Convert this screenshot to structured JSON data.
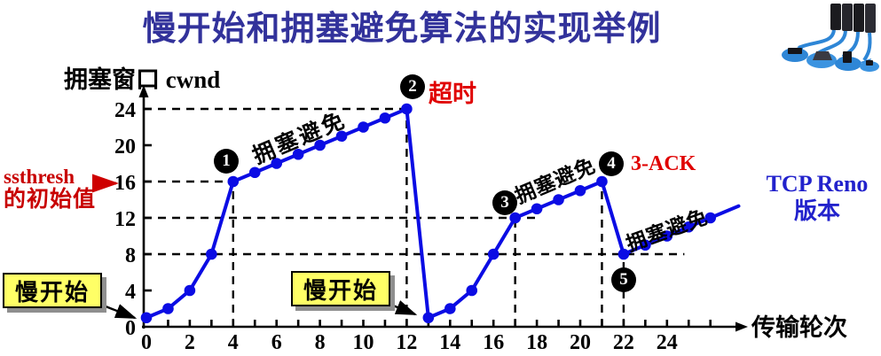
{
  "title": "慢开始和拥塞避免算法的实现举例",
  "chart_data": {
    "type": "line",
    "xlabel": "传输轮次",
    "ylabel": "拥塞窗口  cwnd",
    "x_ticks": [
      0,
      2,
      4,
      6,
      8,
      10,
      12,
      14,
      16,
      18,
      20,
      22,
      24
    ],
    "y_ticks": [
      0,
      4,
      8,
      12,
      16,
      20,
      24
    ],
    "xlim": [
      0,
      27.5
    ],
    "ylim": [
      0,
      26
    ],
    "line_color": "#0B0CE4",
    "series": [
      {
        "name": "cwnd",
        "points": [
          [
            0,
            1
          ],
          [
            1,
            2
          ],
          [
            2,
            4
          ],
          [
            3,
            8
          ],
          [
            4,
            16
          ],
          [
            5,
            17
          ],
          [
            6,
            18
          ],
          [
            7,
            19
          ],
          [
            8,
            20
          ],
          [
            9,
            21
          ],
          [
            10,
            22
          ],
          [
            11,
            23
          ],
          [
            12,
            24
          ],
          [
            13,
            1
          ],
          [
            14,
            2
          ],
          [
            15,
            4
          ],
          [
            16,
            8
          ],
          [
            17,
            12
          ],
          [
            18,
            13
          ],
          [
            19,
            14
          ],
          [
            20,
            15
          ],
          [
            21,
            16
          ],
          [
            22,
            8
          ],
          [
            23,
            9
          ],
          [
            24,
            10
          ],
          [
            25,
            11
          ],
          [
            26,
            12
          ]
        ],
        "tail_end": [
          27.3,
          13.3
        ]
      }
    ],
    "dashed_h": [
      {
        "y": 24,
        "x_to": 12
      },
      {
        "y": 16,
        "x_to": 4
      },
      {
        "y": 12,
        "x_to": 18.2
      },
      {
        "y": 8,
        "x_to": 24.8
      }
    ],
    "dashed_v": [
      {
        "x": 4,
        "y_to": 16
      },
      {
        "x": 12,
        "y_to": 24
      },
      {
        "x": 17,
        "y_to": 12
      },
      {
        "x": 21,
        "y_to": 16
      },
      {
        "x": 22,
        "y_to": 8
      }
    ]
  },
  "annotations": {
    "badge1": "1",
    "badge2": "2",
    "badge3": "3",
    "badge4": "4",
    "badge5": "5",
    "timeout": "超时",
    "three_ack": "3-ACK",
    "ca1": "拥塞避免",
    "ca2": "拥塞避免",
    "ca3": "拥塞避免",
    "ssthresh_line1": "ssthresh",
    "ssthresh_line2": "的初始值",
    "slow_start1": "慢开始",
    "slow_start2": "慢开始",
    "tcp_reno_line1": "TCP Reno",
    "tcp_reno_line2": "版本"
  },
  "colors": {
    "title": "#32329B",
    "line": "#0B0CE4",
    "red_label": "#E00000",
    "slow_start_box": "#FFFF66",
    "tcp_reno": "#2222CC"
  }
}
